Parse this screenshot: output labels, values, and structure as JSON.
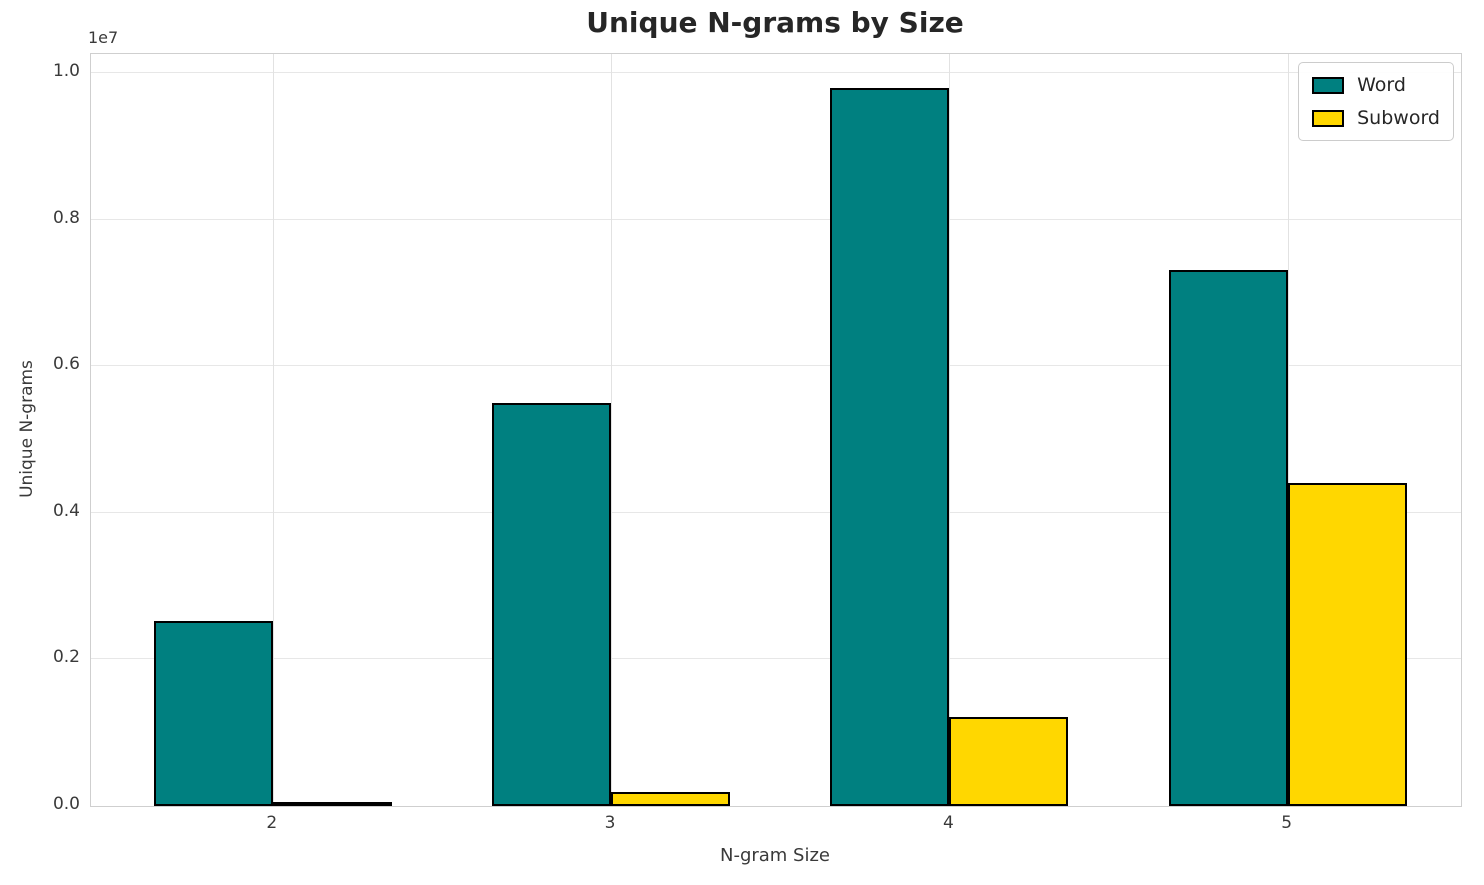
{
  "title": "Unique N-grams by Size",
  "axes": {
    "offset_label": "1e7",
    "x_label": "N-gram Size",
    "y_label": "Unique N-grams",
    "x_ticks": [
      "2",
      "3",
      "4",
      "5"
    ],
    "y_ticks": [
      "0.0",
      "0.2",
      "0.4",
      "0.6",
      "0.8",
      "1.0"
    ]
  },
  "legend": {
    "items": [
      {
        "label": "Word",
        "color": "#008080"
      },
      {
        "label": "Subword",
        "color": "#FFD700"
      }
    ]
  },
  "chart_data": {
    "type": "bar",
    "title": "Unique N-grams by Size",
    "xlabel": "N-gram Size",
    "ylabel": "Unique N-grams",
    "categories": [
      "2",
      "3",
      "4",
      "5"
    ],
    "series": [
      {
        "name": "Word",
        "color": "#008080",
        "values": [
          2520000,
          5500000,
          9800000,
          7320000
        ]
      },
      {
        "name": "Subword",
        "color": "#FFD700",
        "values": [
          30000,
          190000,
          1210000,
          4410000
        ]
      }
    ],
    "y_tick_values": [
      0,
      2000000,
      4000000,
      6000000,
      8000000,
      10000000
    ],
    "ylim": [
      0,
      10260000
    ],
    "scale_offset": "1e7",
    "grid": true,
    "legend_position": "upper right",
    "bar_edge_color": "#000000",
    "background_color": "#ffffff"
  }
}
